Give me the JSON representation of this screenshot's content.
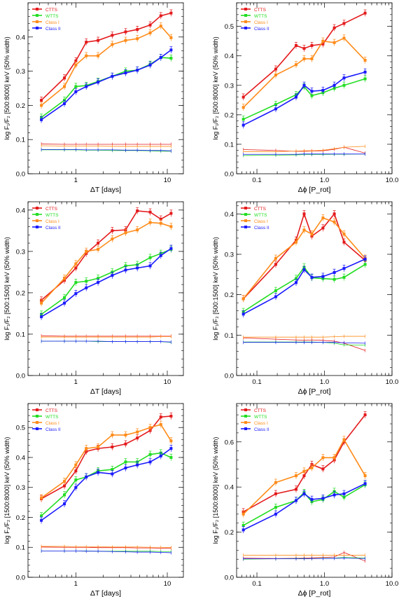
{
  "figure": {
    "panels_note": "6 panels, 3 rows x 2 columns; log x axes",
    "legend_labels": [
      "CTTS",
      "WTTS",
      "Class I",
      "Class II"
    ],
    "legend_colors": [
      "#e41a1c",
      "#22dd22",
      "#ff8c1a",
      "#1a1aff"
    ]
  },
  "chart_data": [
    {
      "type": "line",
      "panel": "row1-left",
      "xlabel": "ΔT [days]",
      "ylabel": "log F₁/F₂ [500:8000] keV (50% width)",
      "xscale": "log",
      "xlim": [
        0.3,
        15
      ],
      "ylim": [
        0,
        0.5
      ],
      "xticks": [
        {
          "v": 1,
          "label": "1"
        },
        {
          "v": 10,
          "label": "10"
        }
      ],
      "yticks": [
        {
          "v": 0.0,
          "label": "0.0"
        },
        {
          "v": 0.1,
          "label": "0.1"
        },
        {
          "v": 0.2,
          "label": "0.2"
        },
        {
          "v": 0.3,
          "label": "0.3"
        },
        {
          "v": 0.4,
          "label": "0.4"
        }
      ],
      "x": [
        0.42,
        0.75,
        1.0,
        1.3,
        1.75,
        2.5,
        3.5,
        4.7,
        6.5,
        8.5,
        11
      ],
      "series": [
        {
          "name": "CTTS",
          "color": "#e41a1c",
          "values": [
            0.215,
            0.28,
            0.33,
            0.385,
            0.39,
            0.405,
            0.415,
            0.422,
            0.435,
            0.462,
            0.47
          ],
          "baseline": [
            0.087,
            0.086,
            0.086,
            0.086,
            0.086,
            0.086,
            0.086,
            0.086,
            0.086,
            0.086,
            0.086
          ]
        },
        {
          "name": "WTTS",
          "color": "#22dd22",
          "values": [
            0.165,
            0.215,
            0.255,
            0.258,
            0.27,
            0.285,
            0.3,
            0.303,
            0.32,
            0.34,
            0.338
          ],
          "baseline": [
            0.07,
            0.07,
            0.07,
            0.069,
            0.069,
            0.068,
            0.068,
            0.068,
            0.067,
            0.066,
            0.066
          ]
        },
        {
          "name": "Class I",
          "color": "#ff8c1a",
          "values": [
            0.2,
            0.255,
            0.318,
            0.345,
            0.345,
            0.378,
            0.39,
            0.395,
            0.412,
            0.432,
            0.398
          ],
          "baseline": [
            0.082,
            0.081,
            0.081,
            0.081,
            0.081,
            0.08,
            0.08,
            0.08,
            0.08,
            0.08,
            0.08
          ]
        },
        {
          "name": "Class II",
          "color": "#1a1aff",
          "values": [
            0.158,
            0.205,
            0.24,
            0.255,
            0.268,
            0.285,
            0.295,
            0.303,
            0.318,
            0.34,
            0.362
          ],
          "baseline": [
            0.071,
            0.071,
            0.071,
            0.07,
            0.07,
            0.07,
            0.069,
            0.069,
            0.068,
            0.068,
            0.067
          ]
        }
      ]
    },
    {
      "type": "line",
      "panel": "row1-right",
      "xlabel": "Δϕ [P_rot]",
      "ylabel": "log F₁/F₂ [500:8000] keV (50% width)",
      "xscale": "log",
      "xlim": [
        0.05,
        10
      ],
      "ylim": [
        0,
        0.58
      ],
      "xticks": [
        {
          "v": 0.1,
          "label": "0.1"
        },
        {
          "v": 1,
          "label": "1.0"
        },
        {
          "v": 10,
          "label": "10.0"
        }
      ],
      "yticks": [
        {
          "v": 0.0,
          "label": "0.0"
        },
        {
          "v": 0.1,
          "label": "0.1"
        },
        {
          "v": 0.2,
          "label": "0.2"
        },
        {
          "v": 0.3,
          "label": "0.3"
        },
        {
          "v": 0.4,
          "label": "0.4"
        },
        {
          "v": 0.5,
          "label": "0.5"
        }
      ],
      "x": [
        0.063,
        0.19,
        0.38,
        0.5,
        0.65,
        0.95,
        1.4,
        1.95,
        4.0
      ],
      "series": [
        {
          "name": "CTTS",
          "color": "#e41a1c",
          "values": [
            0.26,
            0.355,
            0.435,
            0.425,
            0.435,
            0.44,
            0.495,
            0.51,
            0.545
          ],
          "baseline": [
            0.082,
            0.079,
            0.076,
            0.076,
            0.077,
            0.078,
            0.083,
            0.09,
            0.07
          ]
        },
        {
          "name": "WTTS",
          "color": "#22dd22",
          "values": [
            0.185,
            0.235,
            0.268,
            0.295,
            0.265,
            0.275,
            0.29,
            0.3,
            0.322
          ],
          "baseline": [
            0.062,
            0.063,
            0.064,
            0.065,
            0.065,
            0.065,
            0.066,
            0.066,
            0.067
          ]
        },
        {
          "name": "Class I",
          "color": "#ff8c1a",
          "values": [
            0.225,
            0.335,
            0.37,
            0.39,
            0.39,
            0.45,
            0.445,
            0.46,
            0.385
          ],
          "baseline": [
            0.075,
            0.075,
            0.077,
            0.078,
            0.078,
            0.08,
            0.085,
            0.09,
            0.093
          ]
        },
        {
          "name": "Class II",
          "color": "#1a1aff",
          "values": [
            0.165,
            0.22,
            0.26,
            0.3,
            0.28,
            0.283,
            0.3,
            0.325,
            0.345
          ],
          "baseline": [
            0.066,
            0.066,
            0.066,
            0.067,
            0.067,
            0.067,
            0.067,
            0.067,
            0.067
          ]
        }
      ]
    },
    {
      "type": "line",
      "panel": "row2-left",
      "xlabel": "ΔT [days]",
      "ylabel": "log F₁/F₂ [500:1500] keV (50% width)",
      "xscale": "log",
      "xlim": [
        0.3,
        15
      ],
      "ylim": [
        0,
        0.42
      ],
      "xticks": [
        {
          "v": 1,
          "label": "1"
        },
        {
          "v": 10,
          "label": "10"
        }
      ],
      "yticks": [
        {
          "v": 0.0,
          "label": "0.0"
        },
        {
          "v": 0.1,
          "label": "0.1"
        },
        {
          "v": 0.2,
          "label": "0.2"
        },
        {
          "v": 0.3,
          "label": "0.3"
        },
        {
          "v": 0.4,
          "label": "0.4"
        }
      ],
      "x": [
        0.42,
        0.75,
        1.0,
        1.3,
        1.75,
        2.5,
        3.5,
        4.7,
        6.5,
        8.5,
        11
      ],
      "series": [
        {
          "name": "CTTS",
          "color": "#e41a1c",
          "values": [
            0.182,
            0.23,
            0.26,
            0.295,
            0.32,
            0.35,
            0.352,
            0.398,
            0.395,
            0.378,
            0.392
          ],
          "baseline": [
            0.096,
            0.095,
            0.095,
            0.095,
            0.095,
            0.095,
            0.095,
            0.095,
            0.095,
            0.095,
            0.095
          ]
        },
        {
          "name": "WTTS",
          "color": "#22dd22",
          "values": [
            0.148,
            0.188,
            0.225,
            0.228,
            0.235,
            0.25,
            0.265,
            0.268,
            0.285,
            0.295,
            0.305
          ],
          "baseline": [
            0.083,
            0.083,
            0.083,
            0.083,
            0.082,
            0.082,
            0.082,
            0.082,
            0.082,
            0.082,
            0.08
          ]
        },
        {
          "name": "Class I",
          "color": "#ff8c1a",
          "values": [
            0.175,
            0.235,
            0.27,
            0.3,
            0.305,
            0.33,
            0.345,
            0.352,
            0.37,
            0.368,
            0.36
          ],
          "baseline": [
            0.093,
            0.093,
            0.093,
            0.093,
            0.093,
            0.093,
            0.093,
            0.093,
            0.093,
            0.094,
            0.094
          ]
        },
        {
          "name": "Class II",
          "color": "#1a1aff",
          "values": [
            0.142,
            0.175,
            0.198,
            0.212,
            0.225,
            0.242,
            0.255,
            0.26,
            0.265,
            0.29,
            0.307
          ],
          "baseline": [
            0.083,
            0.083,
            0.083,
            0.083,
            0.083,
            0.082,
            0.082,
            0.082,
            0.082,
            0.082,
            0.081
          ]
        }
      ]
    },
    {
      "type": "line",
      "panel": "row2-right",
      "xlabel": "Δϕ [P_rot]",
      "ylabel": "log F₁/F₂ [500:1500] keV (50% width)",
      "xscale": "log",
      "xlim": [
        0.05,
        10
      ],
      "ylim": [
        0,
        0.43
      ],
      "xticks": [
        {
          "v": 0.1,
          "label": "0.1"
        },
        {
          "v": 1,
          "label": "1.0"
        },
        {
          "v": 10,
          "label": "10.0"
        }
      ],
      "yticks": [
        {
          "v": 0.0,
          "label": "0.0"
        },
        {
          "v": 0.1,
          "label": "0.1"
        },
        {
          "v": 0.2,
          "label": "0.2"
        },
        {
          "v": 0.3,
          "label": "0.3"
        },
        {
          "v": 0.4,
          "label": "0.4"
        }
      ],
      "x": [
        0.063,
        0.19,
        0.38,
        0.5,
        0.65,
        0.95,
        1.4,
        1.95,
        4.0
      ],
      "series": [
        {
          "name": "CTTS",
          "color": "#e41a1c",
          "values": [
            0.19,
            0.275,
            0.335,
            0.4,
            0.345,
            0.365,
            0.4,
            0.33,
            0.285
          ],
          "baseline": [
            0.093,
            0.09,
            0.088,
            0.087,
            0.088,
            0.087,
            0.085,
            0.08,
            0.062
          ]
        },
        {
          "name": "WTTS",
          "color": "#22dd22",
          "values": [
            0.158,
            0.21,
            0.24,
            0.268,
            0.242,
            0.24,
            0.238,
            0.243,
            0.275
          ],
          "baseline": [
            0.083,
            0.083,
            0.083,
            0.083,
            0.083,
            0.082,
            0.08,
            0.076,
            0.075
          ]
        },
        {
          "name": "Class I",
          "color": "#ff8c1a",
          "values": [
            0.19,
            0.29,
            0.33,
            0.36,
            0.35,
            0.39,
            0.38,
            0.35,
            0.29
          ],
          "baseline": [
            0.095,
            0.095,
            0.095,
            0.095,
            0.095,
            0.095,
            0.096,
            0.097,
            0.097
          ]
        },
        {
          "name": "Class II",
          "color": "#1a1aff",
          "values": [
            0.152,
            0.195,
            0.23,
            0.262,
            0.243,
            0.245,
            0.255,
            0.265,
            0.288
          ],
          "baseline": [
            0.082,
            0.082,
            0.082,
            0.082,
            0.082,
            0.082,
            0.082,
            0.081,
            0.08
          ]
        }
      ]
    },
    {
      "type": "line",
      "panel": "row3-left",
      "xlabel": "ΔT [days]",
      "ylabel": "log F₁/F₂ [1500:8000] keV (50% width)",
      "xscale": "log",
      "xlim": [
        0.3,
        15
      ],
      "ylim": [
        0,
        0.58
      ],
      "xticks": [
        {
          "v": 1,
          "label": "1"
        },
        {
          "v": 10,
          "label": "10"
        }
      ],
      "yticks": [
        {
          "v": 0.0,
          "label": "0.0"
        },
        {
          "v": 0.1,
          "label": "0.1"
        },
        {
          "v": 0.2,
          "label": "0.2"
        },
        {
          "v": 0.3,
          "label": "0.3"
        },
        {
          "v": 0.4,
          "label": "0.4"
        },
        {
          "v": 0.5,
          "label": "0.5"
        }
      ],
      "x": [
        0.42,
        0.75,
        1.0,
        1.3,
        1.75,
        2.5,
        3.5,
        4.7,
        6.5,
        8.5,
        11
      ],
      "series": [
        {
          "name": "CTTS",
          "color": "#e41a1c",
          "values": [
            0.262,
            0.305,
            0.355,
            0.42,
            0.43,
            0.435,
            0.445,
            0.465,
            0.49,
            0.535,
            0.538
          ],
          "baseline": [
            0.101,
            0.1,
            0.1,
            0.1,
            0.099,
            0.099,
            0.099,
            0.098,
            0.098,
            0.097,
            0.097
          ]
        },
        {
          "name": "WTTS",
          "color": "#22dd22",
          "values": [
            0.205,
            0.275,
            0.325,
            0.335,
            0.355,
            0.36,
            0.385,
            0.385,
            0.41,
            0.415,
            0.4
          ],
          "baseline": [
            0.088,
            0.088,
            0.088,
            0.088,
            0.087,
            0.087,
            0.087,
            0.087,
            0.087,
            0.086,
            0.086
          ]
        },
        {
          "name": "Class I",
          "color": "#ff8c1a",
          "values": [
            0.265,
            0.32,
            0.375,
            0.43,
            0.435,
            0.475,
            0.475,
            0.485,
            0.5,
            0.51,
            0.455
          ],
          "baseline": [
            0.103,
            0.103,
            0.102,
            0.102,
            0.102,
            0.101,
            0.101,
            0.101,
            0.1,
            0.1,
            0.099
          ]
        },
        {
          "name": "Class II",
          "color": "#1a1aff",
          "values": [
            0.19,
            0.245,
            0.3,
            0.335,
            0.35,
            0.345,
            0.365,
            0.375,
            0.385,
            0.405,
            0.43
          ],
          "baseline": [
            0.088,
            0.088,
            0.088,
            0.087,
            0.087,
            0.086,
            0.085,
            0.084,
            0.084,
            0.083,
            0.082
          ]
        }
      ]
    },
    {
      "type": "line",
      "panel": "row3-right",
      "xlabel": "Δϕ [P_rot]",
      "ylabel": "log F₁/F₂ [1500:8000] keV (50% width)",
      "xscale": "log",
      "xlim": [
        0.05,
        10
      ],
      "ylim": [
        0,
        0.77
      ],
      "xticks": [
        {
          "v": 0.1,
          "label": "0.1"
        },
        {
          "v": 1,
          "label": "1.0"
        },
        {
          "v": 10,
          "label": "10.0"
        }
      ],
      "yticks": [
        {
          "v": 0.0,
          "label": "0.0"
        },
        {
          "v": 0.2,
          "label": "0.2"
        },
        {
          "v": 0.4,
          "label": "0.4"
        },
        {
          "v": 0.6,
          "label": "0.6"
        }
      ],
      "x": [
        0.063,
        0.19,
        0.38,
        0.5,
        0.65,
        0.95,
        1.4,
        1.95,
        4.0
      ],
      "series": [
        {
          "name": "CTTS",
          "color": "#e41a1c",
          "values": [
            0.29,
            0.37,
            0.39,
            0.45,
            0.5,
            0.48,
            0.52,
            0.6,
            0.72
          ],
          "baseline": [
            0.085,
            0.083,
            0.084,
            0.085,
            0.086,
            0.088,
            0.09,
            0.11,
            0.072
          ]
        },
        {
          "name": "WTTS",
          "color": "#22dd22",
          "values": [
            0.23,
            0.31,
            0.34,
            0.375,
            0.335,
            0.345,
            0.38,
            0.355,
            0.41
          ],
          "baseline": [
            0.08,
            0.082,
            0.083,
            0.083,
            0.083,
            0.084,
            0.085,
            0.088,
            0.085
          ]
        },
        {
          "name": "Class I",
          "color": "#ff8c1a",
          "values": [
            0.28,
            0.42,
            0.45,
            0.47,
            0.485,
            0.53,
            0.53,
            0.61,
            0.45
          ],
          "baseline": [
            0.098,
            0.098,
            0.098,
            0.098,
            0.098,
            0.098,
            0.098,
            0.098,
            0.098
          ]
        },
        {
          "name": "Class II",
          "color": "#1a1aff",
          "values": [
            0.21,
            0.28,
            0.34,
            0.37,
            0.345,
            0.35,
            0.365,
            0.37,
            0.415
          ],
          "baseline": [
            0.082,
            0.082,
            0.082,
            0.082,
            0.083,
            0.083,
            0.084,
            0.085,
            0.083
          ]
        }
      ]
    }
  ]
}
